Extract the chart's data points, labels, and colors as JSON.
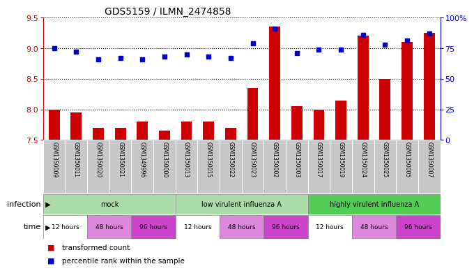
{
  "title": "GDS5159 / ILMN_2474858",
  "samples": [
    "GSM1350009",
    "GSM1350011",
    "GSM1350020",
    "GSM1350021",
    "GSM1349996",
    "GSM1350000",
    "GSM1350013",
    "GSM1350015",
    "GSM1350022",
    "GSM1350023",
    "GSM1350002",
    "GSM1350003",
    "GSM1350017",
    "GSM1350019",
    "GSM1350024",
    "GSM1350025",
    "GSM1350005",
    "GSM1350007"
  ],
  "bar_values": [
    8.0,
    7.95,
    7.7,
    7.7,
    7.8,
    7.65,
    7.8,
    7.8,
    7.7,
    8.35,
    9.35,
    8.05,
    8.0,
    8.15,
    9.2,
    8.5,
    9.1,
    9.25
  ],
  "dot_values": [
    75,
    72,
    66,
    67,
    66,
    68,
    70,
    68,
    67,
    79,
    91,
    71,
    74,
    74,
    86,
    78,
    81,
    87
  ],
  "ylim_left": [
    7.5,
    9.5
  ],
  "ylim_right": [
    0,
    100
  ],
  "yticks_left": [
    7.5,
    8.0,
    8.5,
    9.0,
    9.5
  ],
  "yticks_right": [
    0,
    25,
    50,
    75,
    100
  ],
  "bar_color": "#cc0000",
  "dot_color": "#0000cc",
  "infection_groups": [
    {
      "label": "mock",
      "start": 0,
      "end": 6,
      "color": "#aaddaa"
    },
    {
      "label": "low virulent influenza A",
      "start": 6,
      "end": 12,
      "color": "#aaddaa"
    },
    {
      "label": "highly virulent influenza A",
      "start": 12,
      "end": 18,
      "color": "#55cc55"
    }
  ],
  "time_groups": [
    {
      "label": "12 hours",
      "start": 0,
      "end": 2,
      "color": "#ffffff"
    },
    {
      "label": "48 hours",
      "start": 2,
      "end": 4,
      "color": "#dd88dd"
    },
    {
      "label": "96 hours",
      "start": 4,
      "end": 6,
      "color": "#cc44cc"
    },
    {
      "label": "12 hours",
      "start": 6,
      "end": 8,
      "color": "#ffffff"
    },
    {
      "label": "48 hours",
      "start": 8,
      "end": 10,
      "color": "#dd88dd"
    },
    {
      "label": "96 hours",
      "start": 10,
      "end": 12,
      "color": "#cc44cc"
    },
    {
      "label": "12 hours",
      "start": 12,
      "end": 14,
      "color": "#ffffff"
    },
    {
      "label": "48 hours",
      "start": 14,
      "end": 16,
      "color": "#dd88dd"
    },
    {
      "label": "96 hours",
      "start": 16,
      "end": 18,
      "color": "#cc44cc"
    }
  ],
  "infection_label": "infection",
  "time_label": "time",
  "legend_bar": "transformed count",
  "legend_dot": "percentile rank within the sample",
  "bg_color": "#ffffff",
  "dotted_line_color": "#000000",
  "sample_bg": "#c8c8c8",
  "sample_border": "#ffffff"
}
